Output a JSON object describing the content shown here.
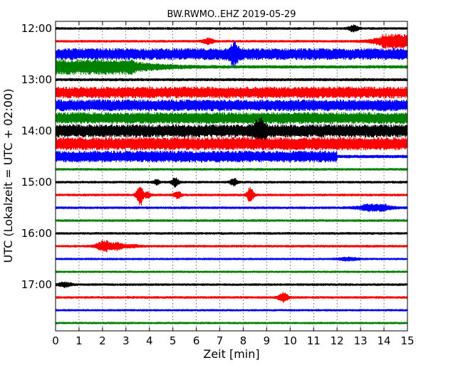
{
  "chart_data": {
    "type": "line",
    "title": "BW.RWMO..EHZ 2019-05-29",
    "xlabel": "Zeit  [min]",
    "ylabel": "UTC (Lokalzeit = UTC + 02:00)",
    "xlim": [
      0,
      15
    ],
    "x_ticks": [
      "0",
      "1",
      "2",
      "3",
      "4",
      "5",
      "6",
      "7",
      "8",
      "9",
      "10",
      "11",
      "12",
      "13",
      "14",
      "15"
    ],
    "y_ticks": [
      "12:00",
      "13:00",
      "14:00",
      "15:00",
      "16:00",
      "17:00"
    ],
    "grid": "vertical dotted",
    "color_cycle": [
      "#000000",
      "#ff0000",
      "#0000ff",
      "#008000"
    ],
    "series": [
      {
        "time": "12:00",
        "amp": 1.5,
        "bursts": [
          [
            12.7,
            4,
            0.15
          ]
        ]
      },
      {
        "time": "12:15",
        "amp": 1.5,
        "bursts": [
          [
            6.5,
            4,
            0.15
          ],
          [
            14.5,
            9,
            0.6
          ]
        ]
      },
      {
        "time": "12:30",
        "amp": 8,
        "bursts": [
          [
            7.6,
            10,
            0.15
          ]
        ]
      },
      {
        "time": "12:45",
        "amp": 2,
        "bursts": [
          [
            1.6,
            9,
            1.8
          ]
        ]
      },
      {
        "time": "13:00",
        "amp": 1.8,
        "bursts": []
      },
      {
        "time": "13:15",
        "amp": 8,
        "bursts": []
      },
      {
        "time": "13:30",
        "amp": 8,
        "bursts": []
      },
      {
        "time": "13:45",
        "amp": 8,
        "bursts": []
      },
      {
        "time": "14:00",
        "amp": 9,
        "bursts": [
          [
            8.7,
            12,
            0.15
          ]
        ]
      },
      {
        "time": "14:15",
        "amp": 9,
        "bursts": []
      },
      {
        "time": "14:30",
        "amp": 8,
        "amp_end": 2,
        "amp_change": 12,
        "bursts": []
      },
      {
        "time": "14:45",
        "amp": 1.5,
        "bursts": []
      },
      {
        "time": "15:00",
        "amp": 1.5,
        "bursts": [
          [
            5.1,
            6,
            0.1
          ],
          [
            7.6,
            5,
            0.1
          ],
          [
            4.3,
            3,
            0.1
          ]
        ]
      },
      {
        "time": "15:15",
        "amp": 1.5,
        "bursts": [
          [
            3.6,
            16,
            0.1
          ],
          [
            5.2,
            5,
            0.1
          ],
          [
            8.3,
            10,
            0.1
          ],
          [
            3.9,
            4,
            0.1
          ]
        ]
      },
      {
        "time": "15:30",
        "amp": 1.5,
        "bursts": [
          [
            13.6,
            4,
            0.5
          ]
        ]
      },
      {
        "time": "15:45",
        "amp": 1.5,
        "bursts": []
      },
      {
        "time": "16:00",
        "amp": 1.5,
        "bursts": []
      },
      {
        "time": "16:15",
        "amp": 1.5,
        "bursts": [
          [
            2.1,
            7,
            0.25
          ],
          [
            2.6,
            5,
            0.2
          ],
          [
            3.0,
            2,
            0.4
          ]
        ]
      },
      {
        "time": "16:30",
        "amp": 1.3,
        "bursts": [
          [
            12.5,
            2,
            0.3
          ]
        ]
      },
      {
        "time": "16:45",
        "amp": 1.3,
        "bursts": []
      },
      {
        "time": "17:00",
        "amp": 1.5,
        "bursts": [
          [
            0.4,
            3,
            0.2
          ]
        ]
      },
      {
        "time": "17:15",
        "amp": 1.5,
        "bursts": [
          [
            9.7,
            6,
            0.15
          ]
        ]
      },
      {
        "time": "17:30",
        "amp": 1.3,
        "bursts": []
      },
      {
        "time": "17:45",
        "amp": 1.3,
        "bursts": []
      }
    ]
  }
}
